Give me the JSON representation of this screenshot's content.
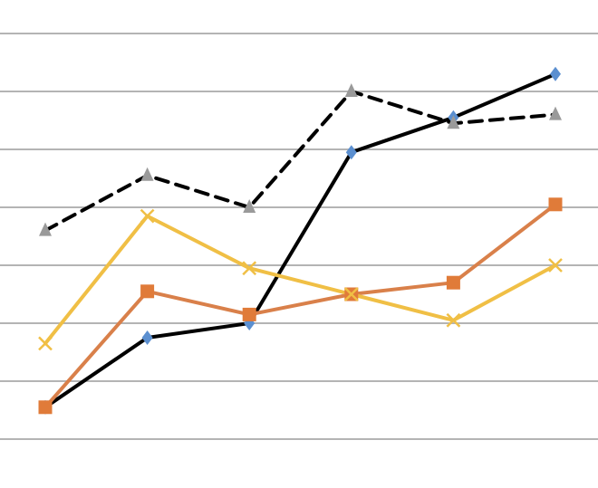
{
  "chart_data": {
    "type": "line",
    "x": [
      1,
      2,
      3,
      4,
      5,
      6
    ],
    "ylim": [
      0,
      7
    ],
    "grid": true,
    "legend": "none",
    "series": [
      {
        "values": [
          0.55,
          1.75,
          2.0,
          4.95,
          5.55,
          6.3
        ],
        "color": "#000000",
        "marker_color": "#5b8fd0",
        "marker": "diamond",
        "dash": "solid"
      },
      {
        "values": [
          0.55,
          2.55,
          2.15,
          2.5,
          2.7,
          4.05
        ],
        "color": "#d9804a",
        "marker_color": "#e07b39",
        "marker": "square",
        "dash": "solid"
      },
      {
        "values": [
          3.6,
          4.55,
          4.0,
          6.0,
          5.45,
          5.6
        ],
        "color": "#000000",
        "marker_color": "#9a9a9a",
        "marker": "triangle",
        "dash": "dashed"
      },
      {
        "values": [
          1.65,
          3.85,
          2.95,
          2.5,
          2.05,
          3.0
        ],
        "color": "#f0bf45",
        "marker_color": "#f0bf45",
        "marker": "x",
        "dash": "solid"
      }
    ]
  }
}
